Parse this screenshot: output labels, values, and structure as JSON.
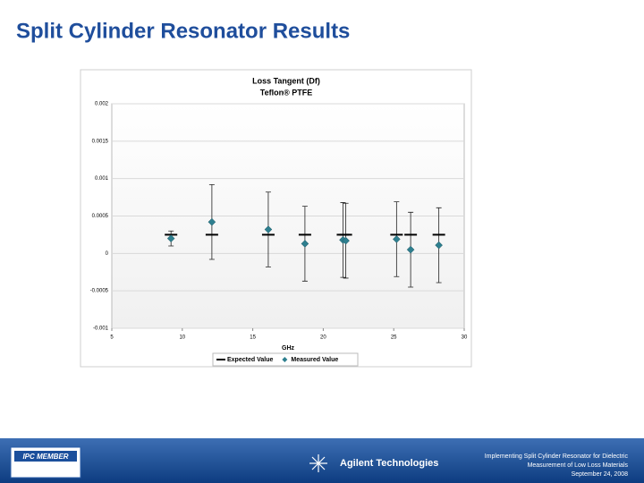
{
  "slide": {
    "title": "Split Cylinder Resonator Results",
    "badge": "IPC MEMBER",
    "company": "Agilent Technologies",
    "footer_lines": [
      "Implementing Split Cylinder Resonator for Dielectric",
      "Measurement of Low Loss Materials",
      "September 24, 2008"
    ]
  },
  "chart_data": {
    "type": "scatter",
    "title": "Loss Tangent (Df)",
    "subtitle": "Teflon® PTFE",
    "x_label": "GHz",
    "xlim": [
      5,
      30
    ],
    "xticks": [
      5,
      10,
      15,
      20,
      25,
      30
    ],
    "ylim": [
      -0.001,
      0.002
    ],
    "yticks": [
      -0.001,
      -0.0005,
      0,
      0.0005,
      0.001,
      0.0015,
      0.002
    ],
    "grid": true,
    "legend": "bottom",
    "series": [
      {
        "name": "Expected Value",
        "color": "#000000",
        "marker": "dash",
        "x": [
          9.2,
          12.1,
          16.1,
          18.7,
          21.4,
          21.6,
          25.2,
          26.2,
          28.2
        ],
        "values": [
          0.00025,
          0.00025,
          0.00025,
          0.00025,
          0.00025,
          0.00025,
          0.00025,
          0.00025,
          0.00025
        ]
      },
      {
        "name": "Measured Value",
        "color": "#2e7f8f",
        "marker": "diamond",
        "x": [
          9.2,
          12.1,
          16.1,
          18.7,
          21.4,
          21.6,
          25.2,
          26.2,
          28.2
        ],
        "values": [
          0.0002,
          0.00042,
          0.00032,
          0.00013,
          0.00018,
          0.00017,
          0.00019,
          5e-05,
          0.00011
        ],
        "errors": [
          0.0001,
          0.0005,
          0.0005,
          0.0005,
          0.0005,
          0.0005,
          0.0005,
          0.0005,
          0.0005
        ]
      }
    ]
  }
}
